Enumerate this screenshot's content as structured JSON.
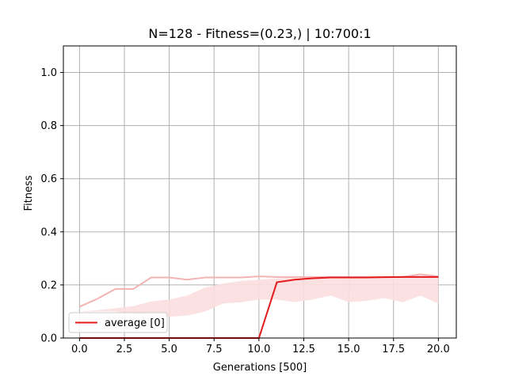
{
  "chart_data": {
    "type": "line",
    "title": "N=128  - Fitness=(0.23,) | 10:700:1",
    "xlabel": "Generations [500]",
    "ylabel": "Fitness",
    "xlim": [
      -0.9,
      21.0
    ],
    "ylim": [
      0.0,
      1.1
    ],
    "xticks": [
      0.0,
      2.5,
      5.0,
      7.5,
      10.0,
      12.5,
      15.0,
      17.5,
      20.0
    ],
    "xtick_labels": [
      "0.0",
      "2.5",
      "5.0",
      "7.5",
      "10.0",
      "12.5",
      "15.0",
      "17.5",
      "20.0"
    ],
    "yticks": [
      0.0,
      0.2,
      0.4,
      0.6,
      0.8,
      1.0
    ],
    "ytick_labels": [
      "0.0",
      "0.2",
      "0.4",
      "0.6",
      "0.8",
      "1.0"
    ],
    "grid": true,
    "legend_position": "lower-left",
    "colors": {
      "average": "#e31a1c",
      "upper": "#f2b4b4",
      "band": "#fbdede"
    },
    "x": [
      0,
      1,
      2,
      3,
      4,
      5,
      6,
      7,
      8,
      9,
      10,
      11,
      12,
      13,
      14,
      15,
      16,
      17,
      18,
      19,
      20
    ],
    "series": [
      {
        "name": "average [0]",
        "values": [
          0,
          0,
          0,
          0,
          0,
          0,
          0,
          0,
          0,
          0,
          0,
          0.21,
          0.22,
          0.225,
          0.228,
          0.228,
          0.228,
          0.229,
          0.23,
          0.23,
          0.23
        ]
      },
      {
        "name": "",
        "values": [
          0.118,
          0.148,
          0.185,
          0.185,
          0.228,
          0.228,
          0.22,
          0.228,
          0.228,
          0.228,
          0.232,
          0.23,
          0.23,
          0.23,
          0.23,
          0.23,
          0.23,
          0.23,
          0.23,
          0.24,
          0.232
        ]
      }
    ],
    "band": {
      "upper": [
        0.1,
        0.105,
        0.112,
        0.12,
        0.138,
        0.145,
        0.16,
        0.19,
        0.205,
        0.215,
        0.22,
        0.225,
        0.228,
        0.225,
        0.23,
        0.225,
        0.23,
        0.23,
        0.232,
        0.235,
        0.232
      ],
      "lower": [
        0.1,
        0.1,
        0.1,
        0.09,
        0.08,
        0.08,
        0.085,
        0.1,
        0.13,
        0.135,
        0.145,
        0.145,
        0.135,
        0.145,
        0.16,
        0.135,
        0.14,
        0.15,
        0.135,
        0.16,
        0.13
      ]
    }
  }
}
